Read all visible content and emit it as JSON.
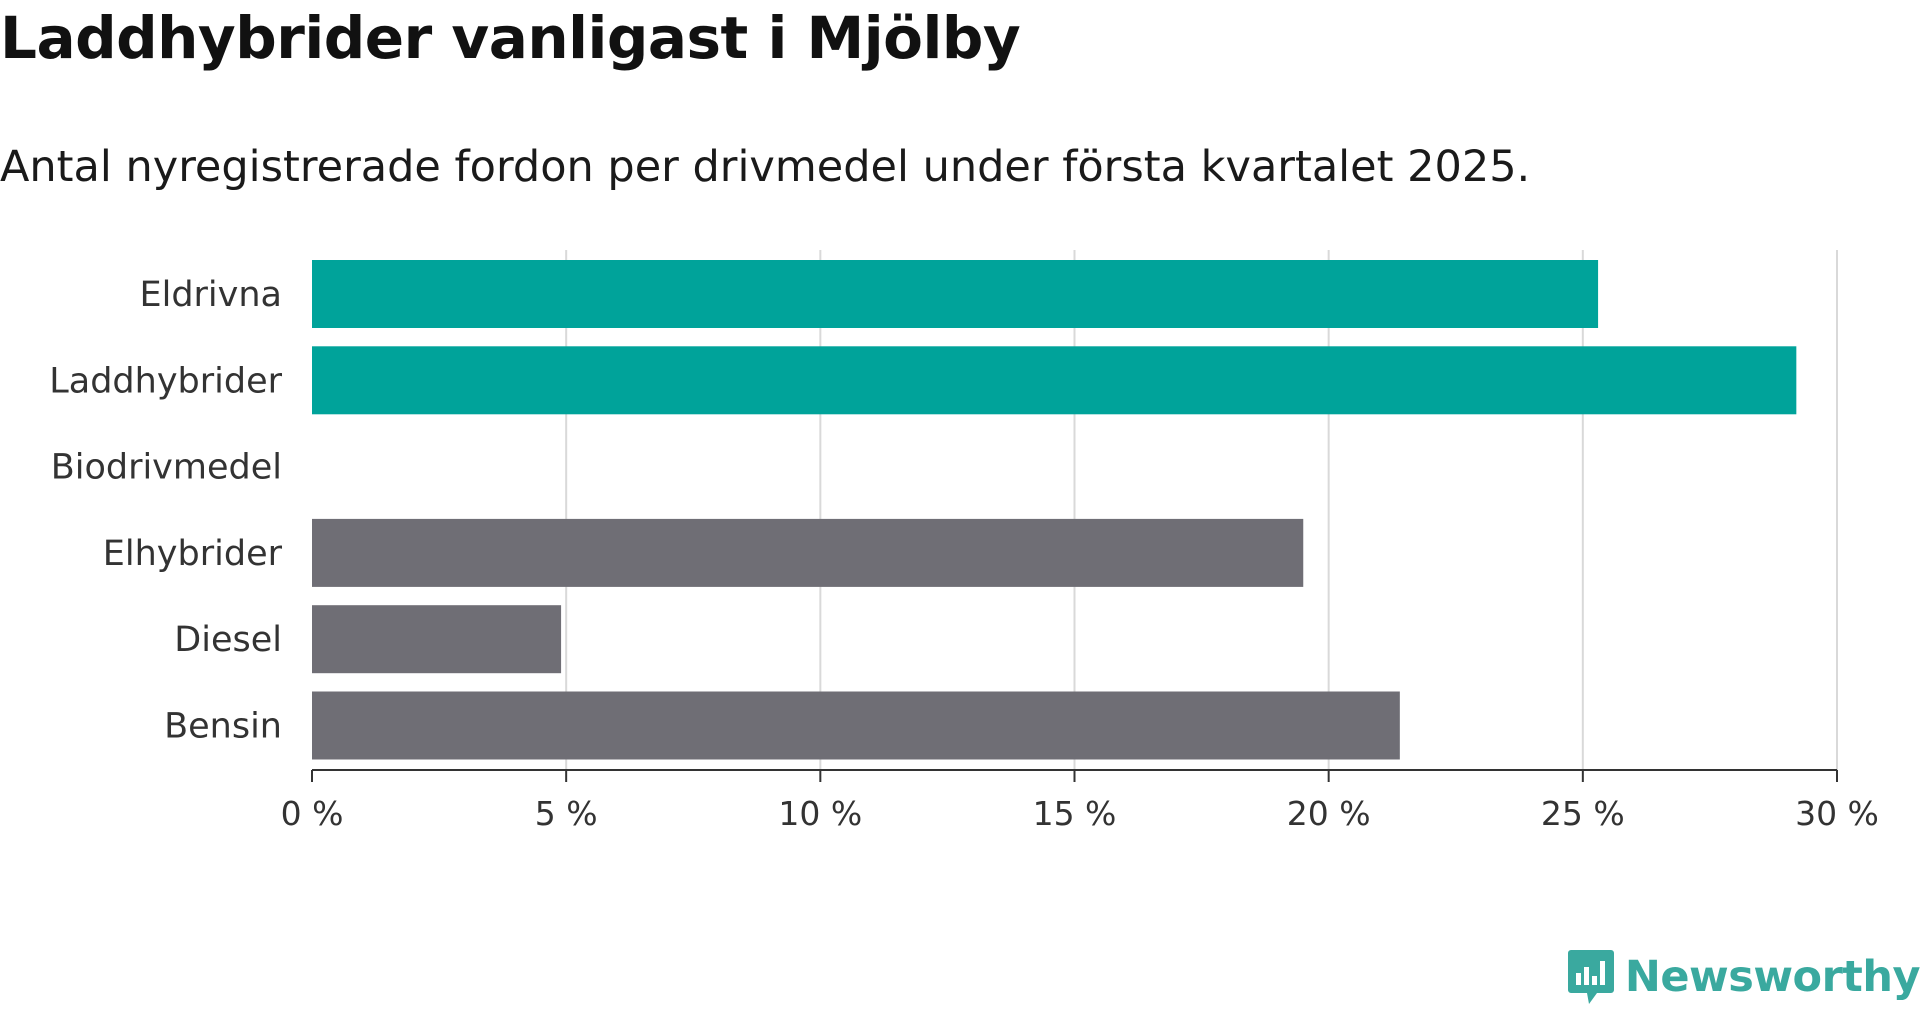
{
  "header": {
    "title": "Laddhybrider vanligast i Mjölby",
    "subtitle": "Antal nyregistrerade fordon per drivmedel under första kvartalet 2025."
  },
  "chart_data": {
    "type": "bar",
    "orientation": "horizontal",
    "categories": [
      "Eldrivna",
      "Laddhybrider",
      "Biodrivmedel",
      "Elhybrider",
      "Diesel",
      "Bensin"
    ],
    "values": [
      25.3,
      29.2,
      0,
      19.5,
      4.9,
      21.4
    ],
    "unit": "%",
    "xlim": [
      0,
      30
    ],
    "xticks": [
      0,
      5,
      10,
      15,
      20,
      25,
      30
    ],
    "tick_labels": [
      "0 %",
      "5 %",
      "10 %",
      "15 %",
      "20 %",
      "25 %",
      "30 %"
    ],
    "grid": "vertical",
    "colors": {
      "Eldrivna": "#00a39a",
      "Laddhybrider": "#00a39a",
      "Biodrivmedel": "#00a39a",
      "Elhybrider": "#6f6e75",
      "Diesel": "#6f6e75",
      "Bensin": "#6f6e75"
    },
    "gridline_color": "#d9d9d9",
    "axis_color": "#333333"
  },
  "brand": {
    "name": "Newsworthy",
    "color": "#3aa99f",
    "icon": "newsworthy-logo-icon"
  }
}
